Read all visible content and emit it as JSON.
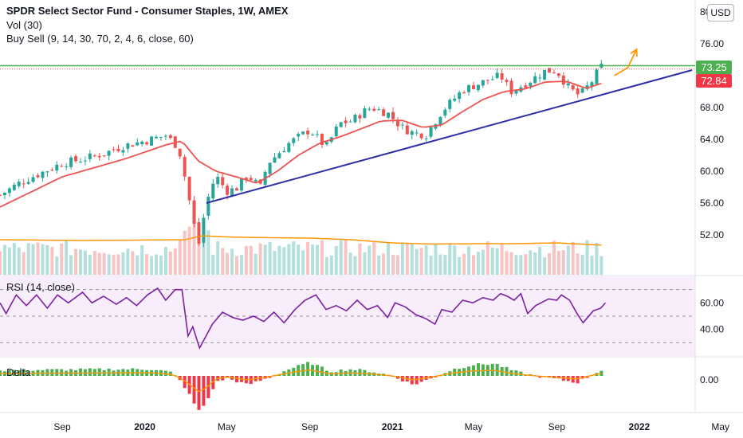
{
  "header": {
    "title": "SPDR Select Sector Fund - Consumer Staples, 1W, AMEX",
    "indicator_vol": "Vol (30)",
    "indicator_buysell": "Buy Sell (9, 14, 30, 70, 2, 4, 6, close, 60)",
    "currency": "USD"
  },
  "panes": {
    "rsi_label": "RSI (14, close)",
    "delta_label": "Delta"
  },
  "badges": {
    "green_value": "73.25",
    "red_value": "72.84",
    "green_color": "#4caf50",
    "red_color": "#f23645"
  },
  "colors": {
    "up": "#26a69a",
    "down": "#ef5350",
    "ma": "#ef5350",
    "trendline": "#2e2ea6",
    "resistance": "#4caf50",
    "arrow": "#ff9800",
    "vol_ma": "#ff9800",
    "rsi": "#7b1fa2",
    "delta_pos": "#4caf50",
    "delta_neg": "#f23645"
  },
  "chart_data": [
    {
      "type": "candlestick",
      "title": "SPDR Select Sector Fund - Consumer Staples, 1W, AMEX",
      "x_tick_labels": [
        "Sep",
        "2020",
        "May",
        "Sep",
        "2021",
        "May",
        "Sep",
        "2022",
        "May"
      ],
      "y_tick_labels": [
        "52.00",
        "56.00",
        "60.00",
        "64.00",
        "68.00",
        "72.00",
        "76.00",
        "80.00"
      ],
      "ylim": [
        47.0,
        81.5
      ],
      "close_anchors": [
        [
          "2019-06-01",
          57.0
        ],
        [
          "2019-07-01",
          58.6
        ],
        [
          "2019-08-01",
          59.8
        ],
        [
          "2019-09-01",
          61.0
        ],
        [
          "2019-10-01",
          61.5
        ],
        [
          "2019-11-01",
          62.2
        ],
        [
          "2019-12-01",
          63.2
        ],
        [
          "2020-01-01",
          63.8
        ],
        [
          "2020-02-01",
          64.5
        ],
        [
          "2020-02-20",
          63.0
        ],
        [
          "2020-03-01",
          59.0
        ],
        [
          "2020-03-20",
          50.5
        ],
        [
          "2020-04-01",
          56.0
        ],
        [
          "2020-04-15",
          59.5
        ],
        [
          "2020-05-01",
          57.5
        ],
        [
          "2020-05-15",
          57.8
        ],
        [
          "2020-06-01",
          59.5
        ],
        [
          "2020-06-20",
          58.0
        ],
        [
          "2020-07-01",
          61.0
        ],
        [
          "2020-08-01",
          63.5
        ],
        [
          "2020-09-01",
          65.2
        ],
        [
          "2020-09-25",
          63.0
        ],
        [
          "2020-10-15",
          66.0
        ],
        [
          "2020-11-01",
          66.3
        ],
        [
          "2020-11-20",
          67.5
        ],
        [
          "2020-12-01",
          68.0
        ],
        [
          "2020-12-25",
          67.3
        ],
        [
          "2021-01-15",
          65.5
        ],
        [
          "2021-02-01",
          64.8
        ],
        [
          "2021-02-20",
          64.6
        ],
        [
          "2021-03-15",
          67.5
        ],
        [
          "2021-04-15",
          70.2
        ],
        [
          "2021-05-15",
          71.2
        ],
        [
          "2021-06-10",
          72.0
        ],
        [
          "2021-06-25",
          70.0
        ],
        [
          "2021-07-15",
          70.9
        ],
        [
          "2021-08-15",
          72.6
        ],
        [
          "2021-09-01",
          72.6
        ],
        [
          "2021-09-20",
          70.3
        ],
        [
          "2021-10-05",
          69.5
        ],
        [
          "2021-10-25",
          71.5
        ],
        [
          "2021-11-05",
          73.2
        ],
        [
          "2021-11-12",
          72.84
        ]
      ],
      "ma_anchors": [
        [
          "2019-06-01",
          55.5
        ],
        [
          "2019-09-01",
          59.3
        ],
        [
          "2019-12-01",
          61.5
        ],
        [
          "2020-02-01",
          63.3
        ],
        [
          "2020-02-25",
          63.8
        ],
        [
          "2020-03-20",
          61.3
        ],
        [
          "2020-04-15",
          60.0
        ],
        [
          "2020-05-15",
          59.3
        ],
        [
          "2020-06-15",
          58.5
        ],
        [
          "2020-07-15",
          60.0
        ],
        [
          "2020-08-15",
          62.0
        ],
        [
          "2020-09-15",
          63.5
        ],
        [
          "2020-10-15",
          64.3
        ],
        [
          "2020-11-15",
          65.3
        ],
        [
          "2020-12-15",
          66.3
        ],
        [
          "2021-01-15",
          66.4
        ],
        [
          "2021-02-15",
          65.5
        ],
        [
          "2021-03-15",
          65.8
        ],
        [
          "2021-04-15",
          67.5
        ],
        [
          "2021-05-15",
          69.0
        ],
        [
          "2021-06-15",
          70.0
        ],
        [
          "2021-07-15",
          70.3
        ],
        [
          "2021-08-15",
          71.2
        ],
        [
          "2021-09-15",
          71.3
        ],
        [
          "2021-10-15",
          70.4
        ],
        [
          "2021-11-12",
          71.2
        ]
      ],
      "trendline": {
        "from": [
          "2020-04-01",
          56.0
        ],
        "to": [
          "2022-03-20",
          72.7
        ]
      },
      "resistance_level": 73.25,
      "forecast_arrow": [
        [
          "2021-11-25",
          72.0
        ],
        [
          "2021-12-15",
          73.0
        ],
        [
          "2021-12-28",
          75.3
        ]
      ],
      "last_close": 72.84
    },
    {
      "type": "bar",
      "title": "Vol (30)",
      "note": "volume histogram with 30-period moving average",
      "ma_anchors": [
        [
          "2019-06-01",
          0.88
        ],
        [
          "2019-10-01",
          0.86
        ],
        [
          "2020-03-01",
          0.88
        ],
        [
          "2020-03-25",
          0.98
        ],
        [
          "2020-05-01",
          0.95
        ],
        [
          "2020-07-01",
          0.93
        ],
        [
          "2020-09-01",
          0.92
        ],
        [
          "2020-11-01",
          0.88
        ],
        [
          "2021-01-01",
          0.8
        ],
        [
          "2021-03-01",
          0.77
        ],
        [
          "2021-05-01",
          0.78
        ],
        [
          "2021-07-01",
          0.78
        ],
        [
          "2021-09-01",
          0.8
        ],
        [
          "2021-11-12",
          0.74
        ]
      ]
    },
    {
      "type": "line",
      "title": "RSI (14, close)",
      "y_tick_labels": [
        "40.00",
        "60.00"
      ],
      "ylim": [
        20,
        80
      ],
      "bands": [
        70,
        50,
        30
      ],
      "anchors": [
        [
          "2019-06-01",
          60
        ],
        [
          "2019-06-10",
          52
        ],
        [
          "2019-06-25",
          66
        ],
        [
          "2019-07-10",
          58
        ],
        [
          "2019-07-25",
          66
        ],
        [
          "2019-08-10",
          56
        ],
        [
          "2019-08-25",
          66
        ],
        [
          "2019-09-10",
          60
        ],
        [
          "2019-10-01",
          68
        ],
        [
          "2019-10-15",
          60
        ],
        [
          "2019-11-01",
          65
        ],
        [
          "2019-11-20",
          59
        ],
        [
          "2019-12-05",
          64
        ],
        [
          "2019-12-20",
          58
        ],
        [
          "2020-01-05",
          66
        ],
        [
          "2020-01-20",
          71
        ],
        [
          "2020-02-01",
          62
        ],
        [
          "2020-02-15",
          70
        ],
        [
          "2020-02-25",
          70
        ],
        [
          "2020-03-05",
          35
        ],
        [
          "2020-03-12",
          42
        ],
        [
          "2020-03-22",
          26
        ],
        [
          "2020-04-10",
          44
        ],
        [
          "2020-04-25",
          53
        ],
        [
          "2020-05-10",
          49
        ],
        [
          "2020-05-25",
          47
        ],
        [
          "2020-06-10",
          50
        ],
        [
          "2020-06-25",
          46
        ],
        [
          "2020-07-10",
          53
        ],
        [
          "2020-07-25",
          45
        ],
        [
          "2020-08-10",
          55
        ],
        [
          "2020-08-25",
          62
        ],
        [
          "2020-09-10",
          66
        ],
        [
          "2020-09-25",
          55
        ],
        [
          "2020-10-10",
          58
        ],
        [
          "2020-10-25",
          54
        ],
        [
          "2020-11-10",
          62
        ],
        [
          "2020-11-25",
          55
        ],
        [
          "2020-12-10",
          58
        ],
        [
          "2020-12-25",
          49
        ],
        [
          "2021-01-05",
          60
        ],
        [
          "2021-01-20",
          57
        ],
        [
          "2021-02-05",
          51
        ],
        [
          "2021-02-20",
          48
        ],
        [
          "2021-03-05",
          44
        ],
        [
          "2021-03-15",
          55
        ],
        [
          "2021-03-30",
          53
        ],
        [
          "2021-04-15",
          62
        ],
        [
          "2021-04-30",
          60
        ],
        [
          "2021-05-15",
          64
        ],
        [
          "2021-05-30",
          62
        ],
        [
          "2021-06-10",
          67
        ],
        [
          "2021-06-20",
          65
        ],
        [
          "2021-06-30",
          62
        ],
        [
          "2021-07-10",
          67
        ],
        [
          "2021-07-20",
          52
        ],
        [
          "2021-08-01",
          58
        ],
        [
          "2021-08-20",
          63
        ],
        [
          "2021-09-01",
          62
        ],
        [
          "2021-09-08",
          66
        ],
        [
          "2021-09-20",
          62
        ],
        [
          "2021-10-01",
          52
        ],
        [
          "2021-10-10",
          45
        ],
        [
          "2021-10-25",
          54
        ],
        [
          "2021-11-05",
          56
        ],
        [
          "2021-11-12",
          60
        ]
      ]
    },
    {
      "type": "bar",
      "title": "Delta",
      "y_tick_labels": [
        "0.00"
      ],
      "segments": [
        [
          "2019-06-01",
          0.25
        ],
        [
          "2019-12-01",
          0.3
        ],
        [
          "2020-01-15",
          0.3
        ],
        [
          "2020-02-10",
          0.15
        ],
        [
          "2020-02-25",
          -0.3
        ],
        [
          "2020-03-10",
          -1.0
        ],
        [
          "2020-03-20",
          -1.6
        ],
        [
          "2020-04-01",
          -1.2
        ],
        [
          "2020-04-15",
          -0.3
        ],
        [
          "2020-05-01",
          -0.1
        ],
        [
          "2020-06-01",
          -0.4
        ],
        [
          "2020-07-01",
          -0.1
        ],
        [
          "2020-08-01",
          0.3
        ],
        [
          "2020-09-01",
          0.6
        ],
        [
          "2020-10-01",
          0.2
        ],
        [
          "2020-11-01",
          0.3
        ],
        [
          "2020-12-01",
          0.2
        ],
        [
          "2021-01-01",
          0.0
        ],
        [
          "2021-02-01",
          -0.4
        ],
        [
          "2021-03-01",
          -0.1
        ],
        [
          "2021-04-01",
          0.3
        ],
        [
          "2021-05-01",
          0.5
        ],
        [
          "2021-06-01",
          0.55
        ],
        [
          "2021-07-01",
          0.2
        ],
        [
          "2021-08-01",
          0.0
        ],
        [
          "2021-09-01",
          -0.15
        ],
        [
          "2021-10-01",
          -0.3
        ],
        [
          "2021-11-01",
          0.2
        ],
        [
          "2021-11-12",
          0.3
        ]
      ]
    }
  ]
}
